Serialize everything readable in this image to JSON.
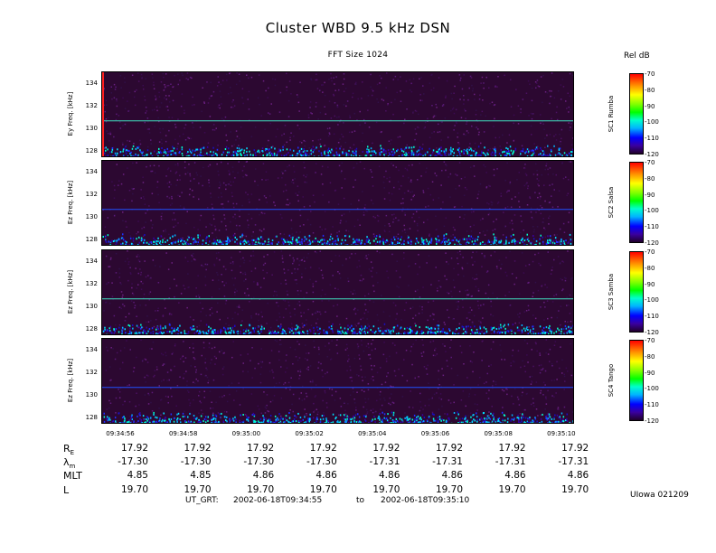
{
  "title": "Cluster WBD 9.5 kHz DSN",
  "subtitle": "FFT Size 1024",
  "colorbar_title": "Rel dB",
  "colorbar_ticks": [
    "-70",
    "-80",
    "-90",
    "-100",
    "-110",
    "-120"
  ],
  "panels": [
    {
      "ylabel": "Ey Freq. [kHz]",
      "spacecraft": "SC1 Rumba",
      "line_color": "#40e0c0"
    },
    {
      "ylabel": "Ez Freq. [kHz]",
      "spacecraft": "SC2 Salsa",
      "line_color": "#2050ff"
    },
    {
      "ylabel": "Ez Freq. [kHz]",
      "spacecraft": "SC3 Samba",
      "line_color": "#40e0c0"
    },
    {
      "ylabel": "Ez Freq. [kHz]",
      "spacecraft": "SC4 Tango",
      "line_color": "#2050ff"
    }
  ],
  "y_ticks": [
    "134",
    "132",
    "130",
    "128"
  ],
  "x_ticks": [
    "09:34:56",
    "09:34:58",
    "09:35:00",
    "09:35:02",
    "09:35:04",
    "09:35:06",
    "09:35:08",
    "09:35:10"
  ],
  "ephemeris": {
    "labels": {
      "re": "R",
      "re_sub": "E",
      "lambda": "λ",
      "lambda_sub": "m",
      "mlt": "MLT",
      "l": "L"
    },
    "RE": [
      "17.92",
      "17.92",
      "17.92",
      "17.92",
      "17.92",
      "17.92",
      "17.92",
      "17.92"
    ],
    "lambda_m": [
      "-17.30",
      "-17.30",
      "-17.30",
      "-17.30",
      "-17.31",
      "-17.31",
      "-17.31",
      "-17.31"
    ],
    "MLT": [
      "4.85",
      "4.85",
      "4.86",
      "4.86",
      "4.86",
      "4.86",
      "4.86",
      "4.86"
    ],
    "L": [
      "19.70",
      "19.70",
      "19.70",
      "19.70",
      "19.70",
      "19.70",
      "19.70",
      "19.70"
    ]
  },
  "footer": {
    "ut_label": "UT_GRT:",
    "start": "2002-06-18T09:34:55",
    "to": "to",
    "end": "2002-06-18T09:35:10",
    "credit": "UIowa 021209"
  },
  "chart_data": {
    "type": "heatmap",
    "title": "Cluster WBD 9.5 kHz DSN",
    "subtitle": "FFT Size 1024",
    "xlabel": "",
    "ylabel": "Freq. [kHz]",
    "ylim": [
      127.4,
      135
    ],
    "y_ticks": [
      128,
      130,
      132,
      134
    ],
    "x_ticks": [
      "09:34:56",
      "09:34:58",
      "09:35:00",
      "09:35:02",
      "09:35:04",
      "09:35:06",
      "09:35:08",
      "09:35:10"
    ],
    "colorbar": {
      "label": "Rel dB",
      "range": [
        -120,
        -70
      ]
    },
    "series": [
      {
        "name": "SC1 Rumba",
        "component": "Ey",
        "line_freq_khz": 130.7
      },
      {
        "name": "SC2 Salsa",
        "component": "Ez",
        "line_freq_khz": 130.7
      },
      {
        "name": "SC3 Samba",
        "component": "Ez",
        "line_freq_khz": 130.7
      },
      {
        "name": "SC4 Tango",
        "component": "Ez",
        "line_freq_khz": 130.7
      }
    ]
  }
}
